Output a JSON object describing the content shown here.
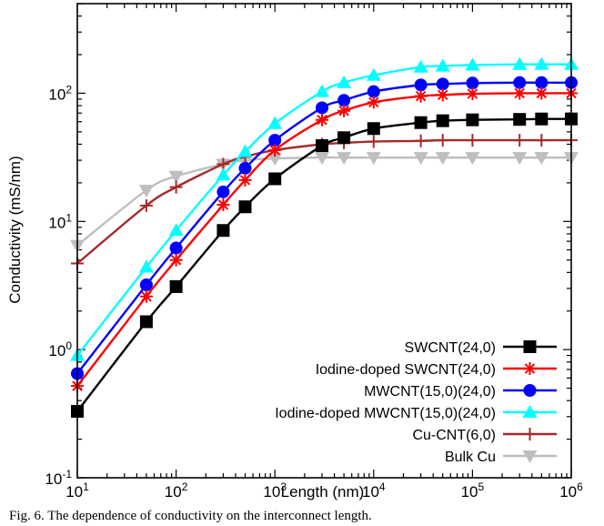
{
  "caption": "Fig. 6. The dependence of conductivity on the interconnect length.",
  "chart_data": {
    "type": "line",
    "title": "",
    "xlabel": "Length (nm)",
    "ylabel": "Conductivity (mS/nm)",
    "x_scale": "log",
    "y_scale": "log",
    "xlim": [
      10,
      1000000
    ],
    "ylim": [
      0.1,
      500
    ],
    "x_ticks": [
      10,
      100,
      1000,
      10000,
      100000,
      1000000
    ],
    "x_tick_labels": [
      [
        "10",
        "1"
      ],
      [
        "10",
        "2"
      ],
      [
        "10",
        "3"
      ],
      [
        "10",
        "4"
      ],
      [
        "10",
        "5"
      ],
      [
        "10",
        "6"
      ]
    ],
    "y_ticks": [
      0.1,
      1,
      10,
      100
    ],
    "y_tick_labels": [
      [
        "10",
        "-1"
      ],
      [
        "10",
        "0"
      ],
      [
        "10",
        "1"
      ],
      [
        "10",
        "2"
      ]
    ],
    "grid": false,
    "legend_position": "bottom-right",
    "series": [
      {
        "name": "SWCNT(24,0)",
        "color": "#000000",
        "marker": "square",
        "x": [
          10,
          50,
          100,
          300,
          500,
          1000,
          3000,
          5000,
          10000,
          30000,
          50000,
          100000,
          300000,
          500000,
          1000000
        ],
        "y": [
          0.33,
          1.65,
          3.1,
          8.5,
          13,
          21.5,
          39,
          45,
          53,
          59,
          61,
          62,
          62.5,
          63,
          63
        ]
      },
      {
        "name": "Iodine-doped SWCNT(24,0)",
        "color": "#ff0000",
        "marker": "asterisk",
        "x": [
          10,
          50,
          100,
          300,
          500,
          1000,
          3000,
          5000,
          10000,
          30000,
          50000,
          100000,
          300000,
          500000,
          1000000
        ],
        "y": [
          0.52,
          2.6,
          5.0,
          13.5,
          21,
          36,
          62,
          73,
          85,
          95,
          97,
          99,
          100,
          100,
          100
        ]
      },
      {
        "name": "MWCNT(15,0)(24,0)",
        "color": "#0000ff",
        "marker": "circle",
        "x": [
          10,
          50,
          100,
          300,
          500,
          1000,
          3000,
          5000,
          10000,
          30000,
          50000,
          100000,
          300000,
          500000,
          1000000
        ],
        "y": [
          0.65,
          3.2,
          6.2,
          17,
          26,
          43,
          77,
          88,
          103,
          116,
          118,
          120,
          121,
          121,
          121
        ]
      },
      {
        "name": "Iodine-doped MWCNT(15,0)(24,0)",
        "color": "#00ffff",
        "marker": "triangle-up",
        "x": [
          10,
          50,
          100,
          300,
          500,
          1000,
          3000,
          5000,
          10000,
          30000,
          50000,
          100000,
          300000,
          500000,
          1000000
        ],
        "y": [
          0.9,
          4.4,
          8.5,
          23,
          35,
          58,
          103,
          121,
          138,
          160,
          163,
          166,
          168,
          168,
          168
        ]
      },
      {
        "name": "Cu-CNT(6,0)",
        "color": "#a52a2a",
        "marker": "plus",
        "x": [
          10,
          50,
          100,
          300,
          500,
          1000,
          3000,
          5000,
          10000,
          30000,
          50000,
          100000,
          300000,
          500000,
          1000000
        ],
        "y": [
          4.7,
          13.3,
          18.5,
          28,
          32,
          36,
          40,
          41,
          42,
          42.5,
          43,
          43,
          43,
          43,
          43
        ]
      },
      {
        "name": "Bulk Cu",
        "color": "#bebebe",
        "marker": "triangle-down",
        "x": [
          10,
          50,
          100,
          300,
          500,
          1000,
          3000,
          5000,
          10000,
          30000,
          50000,
          100000,
          300000,
          500000,
          1000000
        ],
        "y": [
          6.5,
          17.5,
          22.5,
          28,
          30,
          31,
          31.5,
          31.5,
          31.5,
          31.5,
          31.5,
          31.5,
          31.5,
          31.5,
          31.5
        ]
      }
    ]
  }
}
